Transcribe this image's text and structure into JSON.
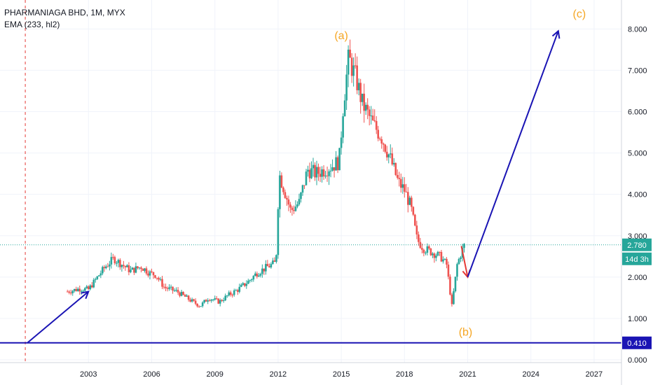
{
  "legend": {
    "title": "PHARMANIAGA BHD, 1M, MYX",
    "indicator": "EMA (233, hl2)"
  },
  "colors": {
    "up": "#26a69a",
    "down": "#ef5350",
    "wave_label": "#f5a623",
    "drawing": "#1a14b4",
    "red_arrow": "#e53935",
    "price_badge": "#26a69a",
    "level_badge": "#1a14b4",
    "dashed_vline": "#e53935",
    "grid": "#f0f3fa",
    "axis_text": "#131722"
  },
  "axis": {
    "y_ticks": [
      "0.000",
      "1.000",
      "2.000",
      "3.000",
      "4.000",
      "5.000",
      "6.000",
      "7.000",
      "8.000"
    ],
    "x_ticks": [
      "2003",
      "2006",
      "2009",
      "2012",
      "2015",
      "2018",
      "2021",
      "2024",
      "2027"
    ]
  },
  "badges": {
    "last_price": "2.780",
    "countdown": "14d 3h",
    "support_level": "0.410"
  },
  "wave_labels": [
    "(a)",
    "(b)",
    "(c)"
  ],
  "chart_data": {
    "type": "candlestick",
    "title": "PHARMANIAGA BHD, 1M, MYX",
    "xlabel": "",
    "ylabel": "",
    "ylim": [
      0,
      8.7
    ],
    "xlim": [
      1998.8,
      2028.3
    ],
    "grid": true,
    "price_path": [
      [
        2002.0,
        1.65
      ],
      [
        2002.6,
        1.72
      ],
      [
        2003.0,
        1.7
      ],
      [
        2003.5,
        2.05
      ],
      [
        2003.8,
        2.25
      ],
      [
        2004.2,
        2.45
      ],
      [
        2004.6,
        2.3
      ],
      [
        2005.0,
        2.15
      ],
      [
        2005.5,
        2.25
      ],
      [
        2005.9,
        2.1
      ],
      [
        2006.2,
        2.05
      ],
      [
        2006.6,
        1.75
      ],
      [
        2007.2,
        1.65
      ],
      [
        2007.8,
        1.45
      ],
      [
        2008.3,
        1.3
      ],
      [
        2008.7,
        1.5
      ],
      [
        2009.2,
        1.4
      ],
      [
        2009.6,
        1.55
      ],
      [
        2010.1,
        1.7
      ],
      [
        2010.6,
        1.9
      ],
      [
        2011.0,
        2.1
      ],
      [
        2011.5,
        2.25
      ],
      [
        2011.9,
        2.35
      ],
      [
        2012.05,
        4.5
      ],
      [
        2012.3,
        4.1
      ],
      [
        2012.6,
        3.6
      ],
      [
        2013.0,
        3.8
      ],
      [
        2013.4,
        4.6
      ],
      [
        2013.8,
        4.5
      ],
      [
        2014.2,
        4.6
      ],
      [
        2014.6,
        4.7
      ],
      [
        2014.9,
        4.8
      ],
      [
        2015.1,
        6.2
      ],
      [
        2015.35,
        7.3
      ],
      [
        2015.7,
        6.8
      ],
      [
        2016.0,
        6.2
      ],
      [
        2016.5,
        5.7
      ],
      [
        2016.9,
        5.4
      ],
      [
        2017.3,
        4.9
      ],
      [
        2017.7,
        4.3
      ],
      [
        2018.0,
        4.1
      ],
      [
        2018.3,
        3.7
      ],
      [
        2018.6,
        2.9
      ],
      [
        2018.9,
        2.7
      ],
      [
        2019.3,
        2.6
      ],
      [
        2019.7,
        2.5
      ],
      [
        2020.0,
        2.3
      ],
      [
        2020.25,
        1.3
      ],
      [
        2020.5,
        2.3
      ],
      [
        2020.7,
        2.6
      ],
      [
        2020.85,
        2.78
      ]
    ],
    "ema": {
      "name": "EMA (233, hl2)",
      "color": "#f5a623",
      "visible": false
    },
    "horizontal_lines": [
      {
        "value": 0.41,
        "style": "solid"
      },
      {
        "value": 2.78,
        "style": "dotted"
      }
    ],
    "vertical_lines": [
      {
        "x": 2000.0,
        "style": "dashed"
      }
    ],
    "drawn_arrows": [
      {
        "from": [
          2000.1,
          0.41
        ],
        "to": [
          2003.0,
          1.65
        ]
      },
      {
        "from": [
          2020.7,
          2.75
        ],
        "to": [
          2021.0,
          2.0
        ]
      },
      {
        "from": [
          2021.0,
          2.0
        ],
        "to": [
          2025.3,
          7.95
        ]
      }
    ],
    "wave_points": [
      {
        "label": "(a)",
        "x": 2015.0,
        "y": 7.75
      },
      {
        "label": "(b)",
        "x": 2020.9,
        "y": 0.58
      },
      {
        "label": "(c)",
        "x": 2026.3,
        "y": 8.28
      }
    ]
  }
}
